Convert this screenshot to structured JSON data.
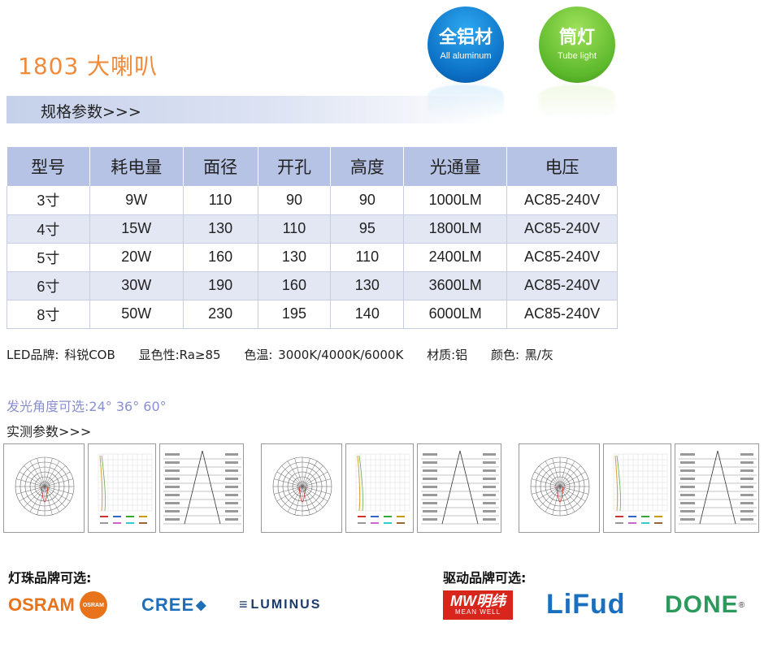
{
  "header": {
    "title": "1803 大喇叭",
    "badge_material_big": "全铝材",
    "badge_material_small": "All aluminum",
    "badge_type_big": "筒灯",
    "badge_type_small": "Tube light",
    "spec_heading": "规格参数>>>"
  },
  "spec_table": {
    "columns": [
      "型号",
      "耗电量",
      "面径",
      "开孔",
      "高度",
      "光通量",
      "电压"
    ],
    "rows": [
      [
        "3寸",
        "9W",
        "110",
        "90",
        "90",
        "1000LM",
        "AC85-240V"
      ],
      [
        "4寸",
        "15W",
        "130",
        "110",
        "95",
        "1800LM",
        "AC85-240V"
      ],
      [
        "5寸",
        "20W",
        "160",
        "130",
        "110",
        "2400LM",
        "AC85-240V"
      ],
      [
        "6寸",
        "30W",
        "190",
        "160",
        "130",
        "3600LM",
        "AC85-240V"
      ],
      [
        "8寸",
        "50W",
        "230",
        "195",
        "140",
        "6000LM",
        "AC85-240V"
      ]
    ]
  },
  "info": {
    "led_brand": "LED品牌: 科锐COB",
    "cri": "显色性:Ra≥85",
    "cct": "色温: 3000K/4000K/6000K",
    "material": "材质:铝",
    "color": "颜色: 黑/灰"
  },
  "beam_angle": "发光角度可选:24°  36°  60°",
  "measure_heading": "实测参数>>>",
  "brands": {
    "led_label": "灯珠品牌可选:",
    "driver_label": "驱动品牌可选:",
    "osram": "OSRAM",
    "osram_badge": "OSRAM",
    "cree": "CREE",
    "luminus": "LUMINUS",
    "meanwell": "MW明纬",
    "meanwell_sub": "MEAN WELL",
    "lifud": "LiFud",
    "done": "DONE"
  },
  "colors": {
    "title": "#f08b3b",
    "table_header": "#b7c3e5",
    "table_alt_row": "#e3e7f4",
    "badge_blue": "#0b6fc4",
    "badge_green": "#5cb82b"
  }
}
